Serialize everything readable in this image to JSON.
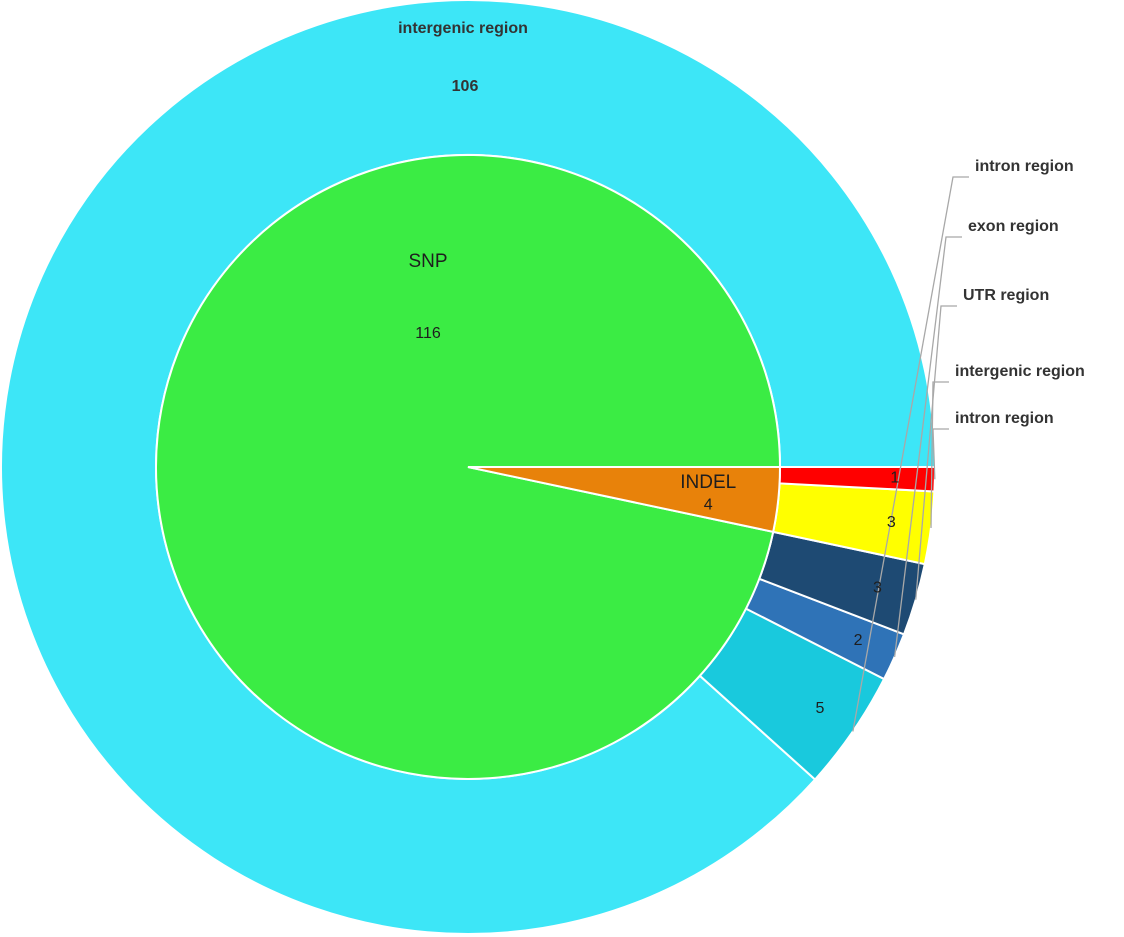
{
  "chart_data": {
    "type": "sunburst",
    "inner": [
      {
        "name": "SNP",
        "value": 116,
        "color": "#3bec44"
      },
      {
        "name": "INDEL",
        "value": 4,
        "color": "#e8820a"
      }
    ],
    "outer": [
      {
        "parent": "SNP",
        "name": "intergenic region",
        "value": 106,
        "color": "#3de6f7"
      },
      {
        "parent": "SNP",
        "name": "intron region",
        "value": 5,
        "color": "#19c9dd"
      },
      {
        "parent": "SNP",
        "name": "exon  region",
        "value": 2,
        "color": "#2f73b7"
      },
      {
        "parent": "SNP",
        "name": "UTR region",
        "value": 3,
        "color": "#1e4a73"
      },
      {
        "parent": "INDEL",
        "name": "intergenic region",
        "value": 3,
        "color": "#ffff00"
      },
      {
        "parent": "INDEL",
        "name": "intron region",
        "value": 1,
        "color": "#ff0000"
      }
    ]
  }
}
